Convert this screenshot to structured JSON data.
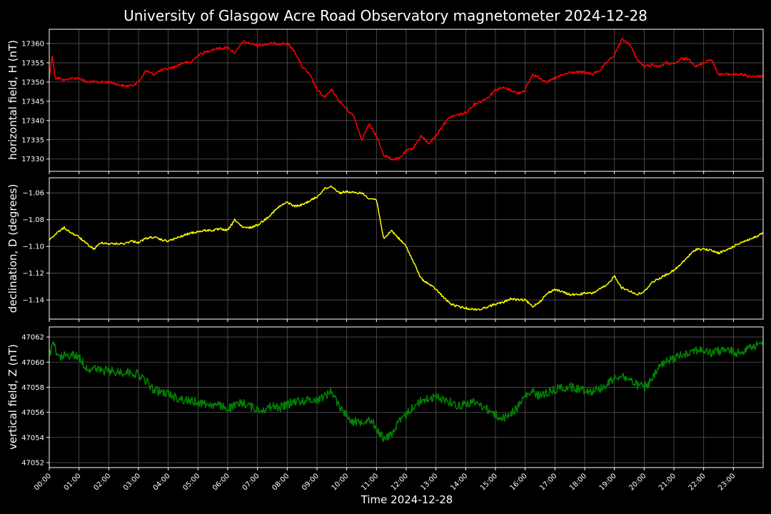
{
  "chart_data": {
    "type": "line",
    "title": "University of Glasgow Acre Road Observatory magnetometer 2024-12-28",
    "xlabel": "Time 2024-12-28",
    "x_ticks": [
      "00:00",
      "01:00",
      "02:00",
      "03:00",
      "04:00",
      "05:00",
      "06:00",
      "07:00",
      "08:00",
      "09:00",
      "10:00",
      "11:00",
      "12:00",
      "13:00",
      "14:00",
      "15:00",
      "16:00",
      "17:00",
      "18:00",
      "19:00",
      "20:00",
      "21:00",
      "22:00",
      "23:00"
    ],
    "xlim_hours": [
      0,
      24
    ],
    "grid": true,
    "panels": [
      {
        "name": "H",
        "ylabel": "horizontal field, H (nT)",
        "color": "#ff0000",
        "ylim": [
          17326.8,
          17363.7
        ],
        "y_ticks": [
          17330,
          17335,
          17340,
          17345,
          17350,
          17355,
          17360
        ],
        "noise": 0.35,
        "x": [
          0.0,
          0.1,
          0.2,
          0.3,
          0.5,
          0.75,
          1.0,
          1.25,
          1.5,
          2.0,
          2.5,
          2.75,
          3.0,
          3.25,
          3.5,
          3.75,
          4.0,
          4.25,
          4.5,
          4.75,
          5.0,
          5.5,
          6.0,
          6.25,
          6.5,
          6.75,
          7.0,
          7.5,
          8.0,
          8.25,
          8.5,
          8.75,
          9.0,
          9.25,
          9.5,
          9.75,
          10.0,
          10.25,
          10.5,
          10.75,
          11.0,
          11.25,
          11.5,
          11.75,
          12.0,
          12.25,
          12.5,
          12.75,
          13.0,
          13.25,
          13.5,
          13.75,
          14.0,
          14.25,
          14.5,
          14.75,
          15.0,
          15.25,
          15.5,
          15.75,
          16.0,
          16.25,
          16.5,
          16.75,
          17.0,
          17.5,
          18.0,
          18.25,
          18.5,
          18.75,
          19.0,
          19.25,
          19.5,
          19.75,
          20.0,
          20.25,
          20.5,
          20.75,
          21.0,
          21.25,
          21.5,
          21.75,
          22.0,
          22.25,
          22.5,
          22.75,
          23.0,
          23.25,
          23.5,
          23.75,
          24.0
        ],
        "values": [
          17351,
          17357,
          17351,
          17351,
          17350.5,
          17351,
          17351,
          17350,
          17350,
          17350,
          17349,
          17349,
          17350,
          17353,
          17352,
          17353,
          17353.5,
          17354,
          17355,
          17355,
          17357,
          17358.5,
          17359,
          17357.5,
          17360.5,
          17360,
          17359.5,
          17360,
          17360,
          17358,
          17354,
          17352,
          17348,
          17346,
          17348,
          17345,
          17343,
          17341,
          17335,
          17339,
          17336,
          17331,
          17330,
          17330,
          17332,
          17333,
          17336,
          17334,
          17336,
          17339,
          17341,
          17341.5,
          17342,
          17344,
          17345,
          17346,
          17348,
          17348.5,
          17348,
          17347,
          17348,
          17352,
          17351,
          17350,
          17351,
          17352.5,
          17352.5,
          17352,
          17353,
          17355,
          17357,
          17361,
          17360,
          17356,
          17354,
          17354.5,
          17354,
          17355,
          17354.5,
          17356,
          17356,
          17354,
          17355,
          17356,
          17352,
          17352,
          17352,
          17352,
          17351.5,
          17351.5,
          17351.5
        ]
      },
      {
        "name": "D",
        "ylabel": "declination, D (degrees)",
        "color": "#ffff00",
        "ylim": [
          -1.1543,
          -1.0487
        ],
        "y_ticks": [
          -1.14,
          -1.12,
          -1.1,
          -1.08,
          -1.06
        ],
        "y_tick_labels": [
          "−1.14",
          "−1.12",
          "−1.10",
          "−1.08",
          "−1.06"
        ],
        "noise": 0.0008,
        "x": [
          0.0,
          0.25,
          0.5,
          0.75,
          1.0,
          1.25,
          1.5,
          1.75,
          2.0,
          2.25,
          2.5,
          2.75,
          3.0,
          3.25,
          3.5,
          3.75,
          4.0,
          4.25,
          4.5,
          4.75,
          5.0,
          5.25,
          5.5,
          5.75,
          6.0,
          6.25,
          6.5,
          6.75,
          7.0,
          7.25,
          7.5,
          7.75,
          8.0,
          8.25,
          8.5,
          8.75,
          9.0,
          9.25,
          9.5,
          9.75,
          10.0,
          10.25,
          10.5,
          10.75,
          11.0,
          11.25,
          11.5,
          11.75,
          12.0,
          12.25,
          12.5,
          12.75,
          13.0,
          13.25,
          13.5,
          13.75,
          14.0,
          14.25,
          14.5,
          14.75,
          15.0,
          15.25,
          15.5,
          15.75,
          16.0,
          16.25,
          16.5,
          16.75,
          17.0,
          17.25,
          17.5,
          17.75,
          18.0,
          18.25,
          18.5,
          18.75,
          19.0,
          19.25,
          19.5,
          19.75,
          20.0,
          20.25,
          20.5,
          20.75,
          21.0,
          21.25,
          21.5,
          21.75,
          22.0,
          22.25,
          22.5,
          22.75,
          23.0,
          23.25,
          23.5,
          23.75,
          24.0
        ],
        "values": [
          -1.095,
          -1.09,
          -1.086,
          -1.09,
          -1.093,
          -1.098,
          -1.102,
          -1.097,
          -1.098,
          -1.098,
          -1.098,
          -1.096,
          -1.097,
          -1.094,
          -1.093,
          -1.095,
          -1.096,
          -1.094,
          -1.092,
          -1.09,
          -1.089,
          -1.088,
          -1.088,
          -1.087,
          -1.088,
          -1.08,
          -1.086,
          -1.086,
          -1.084,
          -1.08,
          -1.075,
          -1.07,
          -1.067,
          -1.07,
          -1.069,
          -1.066,
          -1.063,
          -1.057,
          -1.055,
          -1.06,
          -1.059,
          -1.06,
          -1.06,
          -1.064,
          -1.065,
          -1.095,
          -1.088,
          -1.094,
          -1.1,
          -1.112,
          -1.124,
          -1.128,
          -1.132,
          -1.138,
          -1.143,
          -1.145,
          -1.146,
          -1.147,
          -1.147,
          -1.145,
          -1.143,
          -1.142,
          -1.139,
          -1.14,
          -1.14,
          -1.145,
          -1.141,
          -1.135,
          -1.132,
          -1.134,
          -1.136,
          -1.136,
          -1.135,
          -1.135,
          -1.132,
          -1.129,
          -1.122,
          -1.131,
          -1.133,
          -1.136,
          -1.134,
          -1.127,
          -1.124,
          -1.121,
          -1.118,
          -1.113,
          -1.107,
          -1.102,
          -1.102,
          -1.103,
          -1.105,
          -1.103,
          -1.1,
          -1.097,
          -1.095,
          -1.093,
          -1.09
        ]
      },
      {
        "name": "Z",
        "ylabel": "vertical field, Z (nT)",
        "color": "#008000",
        "ylim": [
          47051.6,
          47062.8
        ],
        "y_ticks": [
          47052,
          47054,
          47056,
          47058,
          47060,
          47062
        ],
        "noise": 0.35,
        "x": [
          0.0,
          0.15,
          0.3,
          0.5,
          0.75,
          1.0,
          1.25,
          1.5,
          1.75,
          2.0,
          2.25,
          2.5,
          2.75,
          3.0,
          3.25,
          3.5,
          3.75,
          4.0,
          4.25,
          4.5,
          4.75,
          5.0,
          5.25,
          5.5,
          5.75,
          6.0,
          6.25,
          6.5,
          6.75,
          7.0,
          7.25,
          7.5,
          7.75,
          8.0,
          8.25,
          8.5,
          8.75,
          9.0,
          9.25,
          9.5,
          9.75,
          10.0,
          10.25,
          10.5,
          10.75,
          11.0,
          11.25,
          11.5,
          11.75,
          12.0,
          12.25,
          12.5,
          12.75,
          13.0,
          13.25,
          13.5,
          13.75,
          14.0,
          14.25,
          14.5,
          14.75,
          15.0,
          15.25,
          15.5,
          15.75,
          16.0,
          16.25,
          16.5,
          16.75,
          17.0,
          17.25,
          17.5,
          17.75,
          18.0,
          18.25,
          18.5,
          18.75,
          19.0,
          19.25,
          19.5,
          19.75,
          20.0,
          20.25,
          20.5,
          20.75,
          21.0,
          21.25,
          21.5,
          21.75,
          22.0,
          22.25,
          22.5,
          22.75,
          23.0,
          23.25,
          23.5,
          23.75,
          24.0
        ],
        "values": [
          47060.5,
          47061.5,
          47060.3,
          47060.5,
          47060.6,
          47060.4,
          47059.5,
          47059.5,
          47059.3,
          47059.3,
          47059.2,
          47059.2,
          47059.2,
          47059,
          47058.5,
          47057.8,
          47057.6,
          47057.5,
          47057.2,
          47057,
          47056.9,
          47056.8,
          47056.7,
          47056.6,
          47056.5,
          47056.3,
          47056.5,
          47056.8,
          47056.5,
          47056.2,
          47056.3,
          47056.5,
          47056.4,
          47056.6,
          47056.9,
          47056.9,
          47057,
          47057,
          47057.3,
          47057.7,
          47056.5,
          47055.8,
          47055.2,
          47055.3,
          47055.5,
          47054.8,
          47053.8,
          47054.3,
          47055.2,
          47055.8,
          47056.5,
          47056.9,
          47057.1,
          47057.2,
          47057.1,
          47056.8,
          47056.5,
          47056.7,
          47056.8,
          47056.6,
          47056.2,
          47055.8,
          47055.5,
          47055.9,
          47056.4,
          47057.3,
          47057.6,
          47057.3,
          47057.6,
          47057.8,
          47058,
          47058,
          47057.9,
          47057.8,
          47057.7,
          47057.9,
          47058.2,
          47058.8,
          47058.9,
          47058.6,
          47058.2,
          47058,
          47058.5,
          47059.6,
          47060,
          47060.3,
          47060.6,
          47060.8,
          47061,
          47060.9,
          47060.7,
          47060.9,
          47061,
          47060.8,
          47060.7,
          47061.3,
          47061.3,
          47061.4
        ]
      }
    ]
  }
}
